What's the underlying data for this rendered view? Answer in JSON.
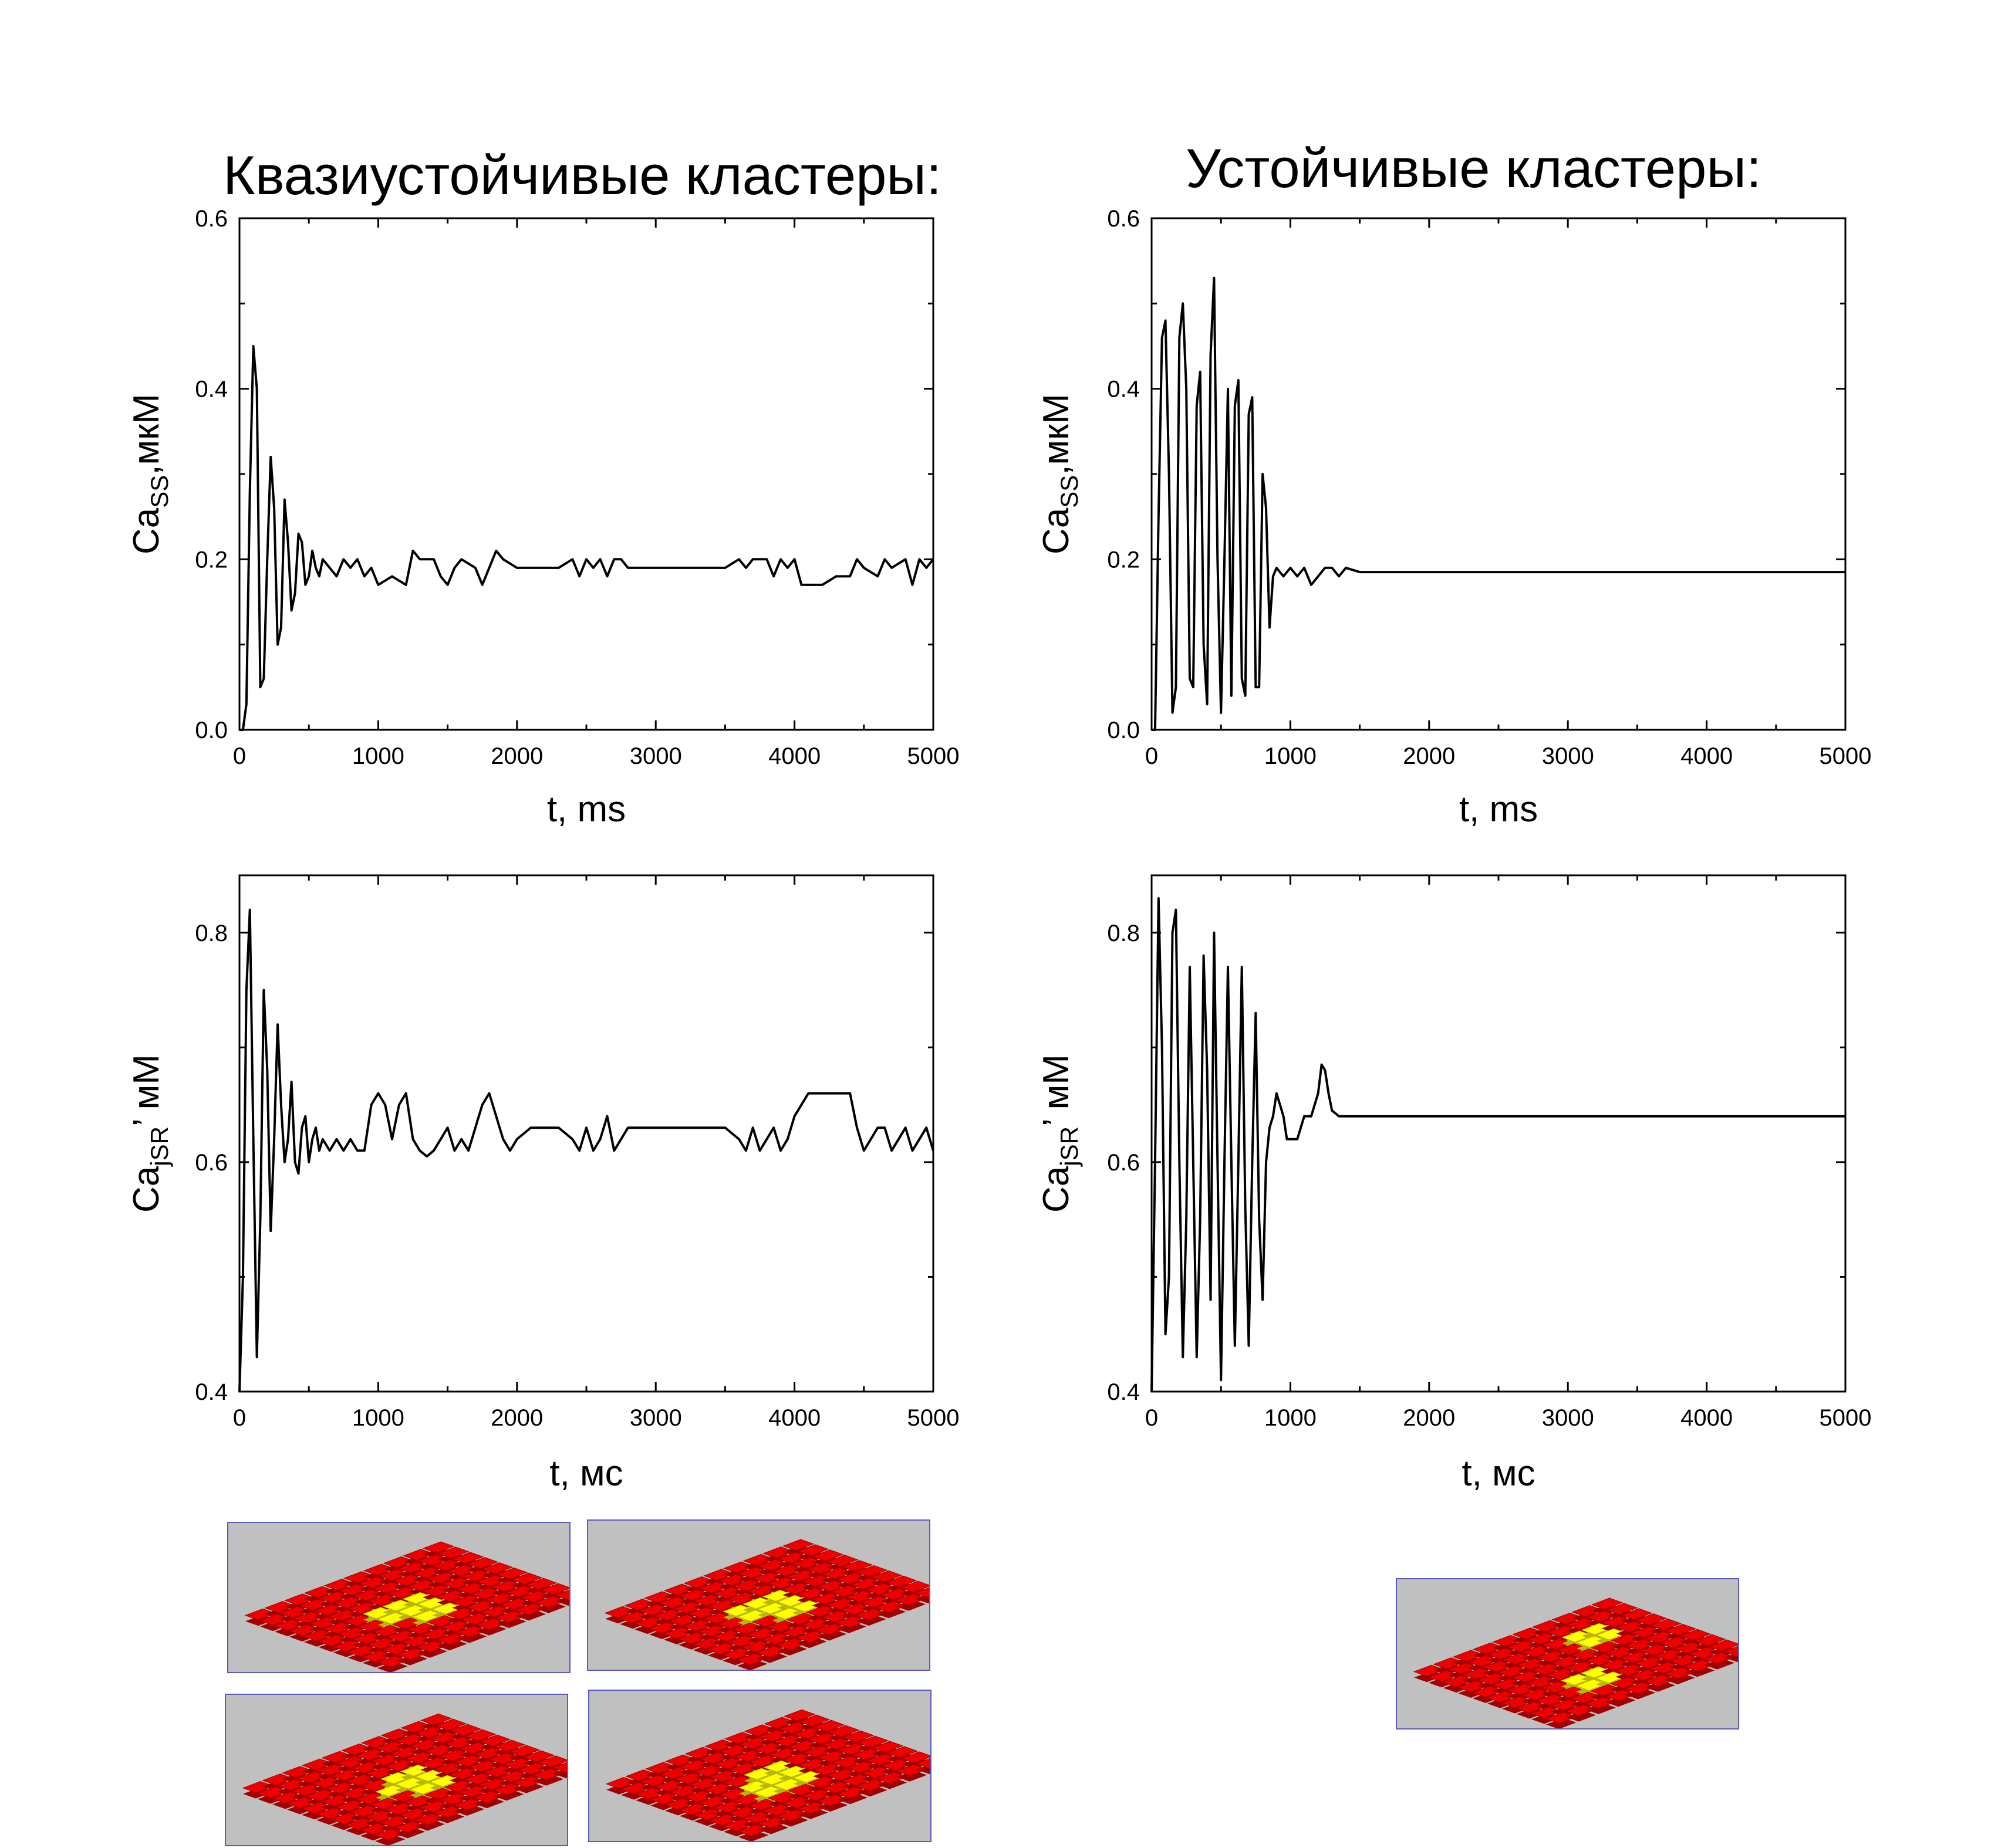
{
  "headings": {
    "left": "Квазиустойчивые кластеры:",
    "right": "Устойчивые кластеры:"
  },
  "colors": {
    "line": "#000000",
    "tile_red": "#ee0000",
    "tile_red_dark": "#a00000",
    "tile_yellow": "#ffff00",
    "tile_yellow_dark": "#b8b800",
    "thumb_bg": "#c0c0c0",
    "thumb_border": "#5b5bbf"
  },
  "chart_data": [
    {
      "type": "line",
      "xlabel": "t, ms",
      "ylabel_main": "Ca",
      "ylabel_sub": "SS",
      "ylabel_suffix": ",мкМ",
      "xlim": [
        0,
        5000
      ],
      "ylim": [
        0,
        0.6
      ],
      "xticks": [
        "0",
        "1000",
        "2000",
        "3000",
        "4000",
        "5000"
      ],
      "yticks": [
        "0.0",
        "0.2",
        "0.4",
        "0.6"
      ],
      "x": [
        0,
        25,
        50,
        75,
        100,
        125,
        150,
        175,
        200,
        225,
        250,
        275,
        300,
        325,
        350,
        375,
        400,
        425,
        450,
        475,
        500,
        525,
        550,
        575,
        600,
        650,
        700,
        750,
        800,
        850,
        900,
        950,
        1000,
        1100,
        1200,
        1250,
        1300,
        1400,
        1450,
        1500,
        1550,
        1600,
        1700,
        1750,
        1800,
        1850,
        1900,
        2000,
        2100,
        2200,
        2300,
        2400,
        2450,
        2500,
        2550,
        2600,
        2650,
        2700,
        2750,
        2800,
        2900,
        3000,
        3100,
        3200,
        3300,
        3400,
        3500,
        3600,
        3650,
        3700,
        3800,
        3850,
        3900,
        3950,
        4000,
        4050,
        4100,
        4200,
        4300,
        4400,
        4450,
        4500,
        4600,
        4650,
        4700,
        4800,
        4850,
        4900,
        4950,
        5000
      ],
      "values": [
        0.0,
        0.0,
        0.03,
        0.28,
        0.45,
        0.4,
        0.05,
        0.06,
        0.2,
        0.32,
        0.26,
        0.1,
        0.12,
        0.27,
        0.22,
        0.14,
        0.16,
        0.23,
        0.22,
        0.17,
        0.18,
        0.21,
        0.19,
        0.18,
        0.2,
        0.19,
        0.18,
        0.2,
        0.19,
        0.2,
        0.18,
        0.19,
        0.17,
        0.18,
        0.17,
        0.21,
        0.2,
        0.2,
        0.18,
        0.17,
        0.19,
        0.2,
        0.19,
        0.17,
        0.19,
        0.21,
        0.2,
        0.19,
        0.19,
        0.19,
        0.19,
        0.2,
        0.18,
        0.2,
        0.19,
        0.2,
        0.18,
        0.2,
        0.2,
        0.19,
        0.19,
        0.19,
        0.19,
        0.19,
        0.19,
        0.19,
        0.19,
        0.2,
        0.19,
        0.2,
        0.2,
        0.18,
        0.2,
        0.19,
        0.2,
        0.17,
        0.17,
        0.17,
        0.18,
        0.18,
        0.2,
        0.19,
        0.18,
        0.2,
        0.19,
        0.2,
        0.17,
        0.2,
        0.19,
        0.2
      ]
    },
    {
      "type": "line",
      "xlabel": "t, ms",
      "ylabel_main": "Ca",
      "ylabel_sub": "SS",
      "ylabel_suffix": ",мкМ",
      "xlim": [
        0,
        5000
      ],
      "ylim": [
        0,
        0.6
      ],
      "xticks": [
        "0",
        "1000",
        "2000",
        "3000",
        "4000",
        "5000"
      ],
      "yticks": [
        "0.0",
        "0.2",
        "0.4",
        "0.6"
      ],
      "x": [
        0,
        25,
        50,
        75,
        100,
        125,
        150,
        175,
        200,
        225,
        250,
        275,
        300,
        325,
        350,
        375,
        400,
        425,
        450,
        475,
        500,
        525,
        550,
        575,
        600,
        625,
        650,
        675,
        700,
        725,
        750,
        775,
        800,
        825,
        850,
        875,
        900,
        950,
        1000,
        1050,
        1100,
        1150,
        1200,
        1250,
        1300,
        1350,
        1400,
        1500,
        2000,
        3000,
        4000,
        5000
      ],
      "values": [
        0.0,
        0.0,
        0.25,
        0.46,
        0.48,
        0.3,
        0.02,
        0.05,
        0.46,
        0.5,
        0.4,
        0.06,
        0.05,
        0.38,
        0.42,
        0.1,
        0.03,
        0.44,
        0.53,
        0.2,
        0.02,
        0.2,
        0.4,
        0.04,
        0.38,
        0.41,
        0.06,
        0.04,
        0.37,
        0.39,
        0.05,
        0.05,
        0.3,
        0.26,
        0.12,
        0.18,
        0.19,
        0.18,
        0.19,
        0.18,
        0.19,
        0.17,
        0.18,
        0.19,
        0.19,
        0.18,
        0.19,
        0.185,
        0.185,
        0.185,
        0.185,
        0.185
      ]
    },
    {
      "type": "line",
      "xlabel": "t, мс",
      "ylabel_main": "Ca",
      "ylabel_sub": "jSR",
      "ylabel_suffix": "’  мМ",
      "xlim": [
        0,
        5000
      ],
      "ylim": [
        0.4,
        0.85
      ],
      "xticks": [
        "0",
        "1000",
        "2000",
        "3000",
        "4000",
        "5000"
      ],
      "yticks": [
        "0.4",
        "0.6",
        "0.8"
      ],
      "x": [
        0,
        25,
        50,
        75,
        100,
        125,
        150,
        175,
        200,
        225,
        250,
        275,
        300,
        325,
        350,
        375,
        400,
        425,
        450,
        475,
        500,
        525,
        550,
        575,
        600,
        650,
        700,
        750,
        800,
        850,
        900,
        950,
        1000,
        1050,
        1100,
        1150,
        1200,
        1250,
        1300,
        1350,
        1400,
        1450,
        1500,
        1550,
        1600,
        1650,
        1700,
        1750,
        1800,
        1850,
        1900,
        1950,
        2000,
        2100,
        2200,
        2300,
        2400,
        2450,
        2500,
        2550,
        2600,
        2650,
        2700,
        2750,
        2800,
        2900,
        3000,
        3100,
        3200,
        3300,
        3400,
        3500,
        3600,
        3650,
        3700,
        3750,
        3800,
        3850,
        3900,
        3950,
        4000,
        4100,
        4200,
        4300,
        4400,
        4450,
        4500,
        4550,
        4600,
        4650,
        4700,
        4750,
        4800,
        4850,
        4900,
        4950,
        5000
      ],
      "values": [
        0.4,
        0.5,
        0.75,
        0.82,
        0.62,
        0.43,
        0.55,
        0.75,
        0.68,
        0.54,
        0.62,
        0.72,
        0.65,
        0.6,
        0.62,
        0.67,
        0.6,
        0.59,
        0.63,
        0.64,
        0.6,
        0.62,
        0.63,
        0.61,
        0.62,
        0.61,
        0.62,
        0.61,
        0.62,
        0.61,
        0.61,
        0.65,
        0.66,
        0.65,
        0.62,
        0.65,
        0.66,
        0.62,
        0.61,
        0.605,
        0.61,
        0.62,
        0.63,
        0.61,
        0.62,
        0.61,
        0.63,
        0.65,
        0.66,
        0.64,
        0.62,
        0.61,
        0.62,
        0.63,
        0.63,
        0.63,
        0.62,
        0.61,
        0.63,
        0.61,
        0.62,
        0.64,
        0.61,
        0.62,
        0.63,
        0.63,
        0.63,
        0.63,
        0.63,
        0.63,
        0.63,
        0.63,
        0.62,
        0.61,
        0.63,
        0.61,
        0.62,
        0.63,
        0.61,
        0.62,
        0.64,
        0.66,
        0.66,
        0.66,
        0.66,
        0.63,
        0.61,
        0.62,
        0.63,
        0.63,
        0.61,
        0.62,
        0.63,
        0.61,
        0.62,
        0.63,
        0.61
      ]
    },
    {
      "type": "line",
      "xlabel": "t, мс",
      "ylabel_main": "Ca",
      "ylabel_sub": "jSR",
      "ylabel_suffix": "’  мМ",
      "xlim": [
        0,
        5000
      ],
      "ylim": [
        0.4,
        0.85
      ],
      "xticks": [
        "0",
        "1000",
        "2000",
        "3000",
        "4000",
        "5000"
      ],
      "yticks": [
        "0.4",
        "0.6",
        "0.8"
      ],
      "x": [
        0,
        25,
        50,
        75,
        100,
        125,
        150,
        175,
        200,
        225,
        250,
        275,
        300,
        325,
        350,
        375,
        400,
        425,
        450,
        475,
        500,
        525,
        550,
        575,
        600,
        625,
        650,
        675,
        700,
        725,
        750,
        775,
        800,
        825,
        850,
        875,
        900,
        925,
        950,
        975,
        1000,
        1050,
        1100,
        1150,
        1200,
        1225,
        1250,
        1275,
        1300,
        1350,
        1400,
        1500,
        2000,
        3000,
        4000,
        5000
      ],
      "values": [
        0.4,
        0.6,
        0.83,
        0.7,
        0.45,
        0.5,
        0.8,
        0.82,
        0.6,
        0.43,
        0.55,
        0.77,
        0.6,
        0.43,
        0.55,
        0.78,
        0.68,
        0.48,
        0.8,
        0.6,
        0.41,
        0.6,
        0.77,
        0.6,
        0.44,
        0.6,
        0.77,
        0.56,
        0.44,
        0.6,
        0.73,
        0.55,
        0.48,
        0.6,
        0.63,
        0.64,
        0.66,
        0.65,
        0.64,
        0.62,
        0.62,
        0.62,
        0.64,
        0.64,
        0.66,
        0.685,
        0.68,
        0.66,
        0.645,
        0.64,
        0.64,
        0.64,
        0.64,
        0.64,
        0.64,
        0.64
      ]
    }
  ]
}
